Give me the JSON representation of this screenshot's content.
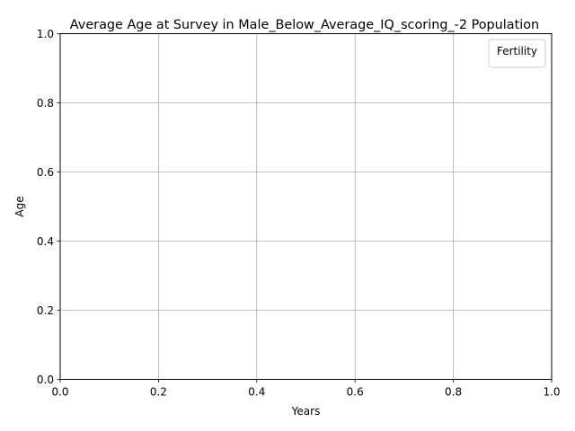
{
  "chart_data": {
    "type": "line",
    "title": "Average Age at Survey in Male_Below_Average_IQ_scoring_-2 Population",
    "xlabel": "Years",
    "ylabel": "Age",
    "xlim": [
      0.0,
      1.0
    ],
    "ylim": [
      0.0,
      1.0
    ],
    "x_ticks": [
      "0.0",
      "0.2",
      "0.4",
      "0.6",
      "0.8",
      "1.0"
    ],
    "y_ticks": [
      "0.0",
      "0.2",
      "0.4",
      "0.6",
      "0.8",
      "1.0"
    ],
    "grid": true,
    "legend": {
      "title": "Fertility",
      "placement": "top-right",
      "entries": []
    },
    "series": []
  },
  "colors": {
    "axis": "#000000",
    "grid": "#b0b0b0",
    "legend_border": "#cccccc",
    "background": "#ffffff"
  }
}
